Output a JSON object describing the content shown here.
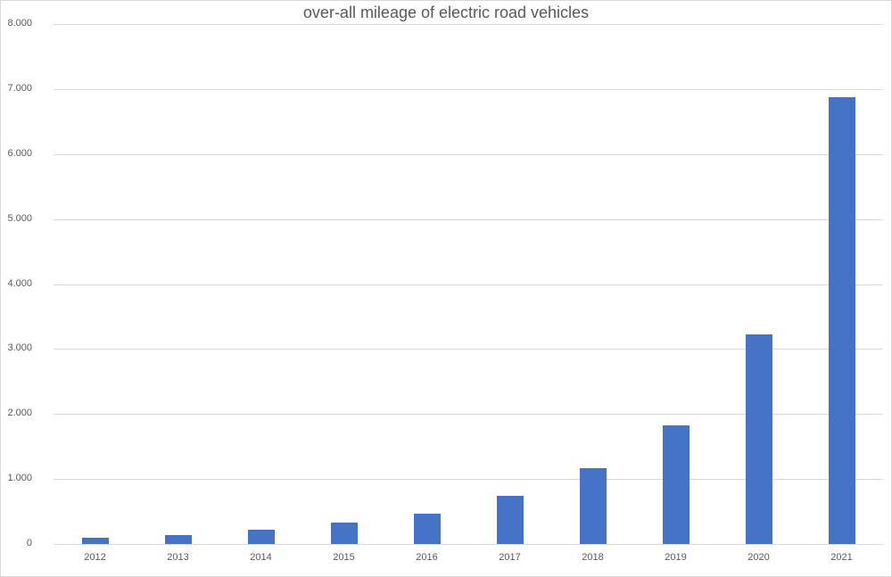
{
  "chart_data": {
    "type": "bar",
    "title": "over-all mileage of electric road vehicles",
    "xlabel": "",
    "ylabel": "",
    "categories": [
      "2012",
      "2013",
      "2014",
      "2015",
      "2016",
      "2017",
      "2018",
      "2019",
      "2020",
      "2021"
    ],
    "values": [
      100,
      140,
      225,
      330,
      465,
      740,
      1160,
      1820,
      3220,
      6870
    ],
    "ylim": [
      0,
      8000
    ],
    "yticks": [
      "0",
      "1.000",
      "2.000",
      "3.000",
      "4.000",
      "5.000",
      "6.000",
      "7.000",
      "8.000"
    ],
    "grid": true,
    "legend": null,
    "bar_color": "#4472c4"
  }
}
